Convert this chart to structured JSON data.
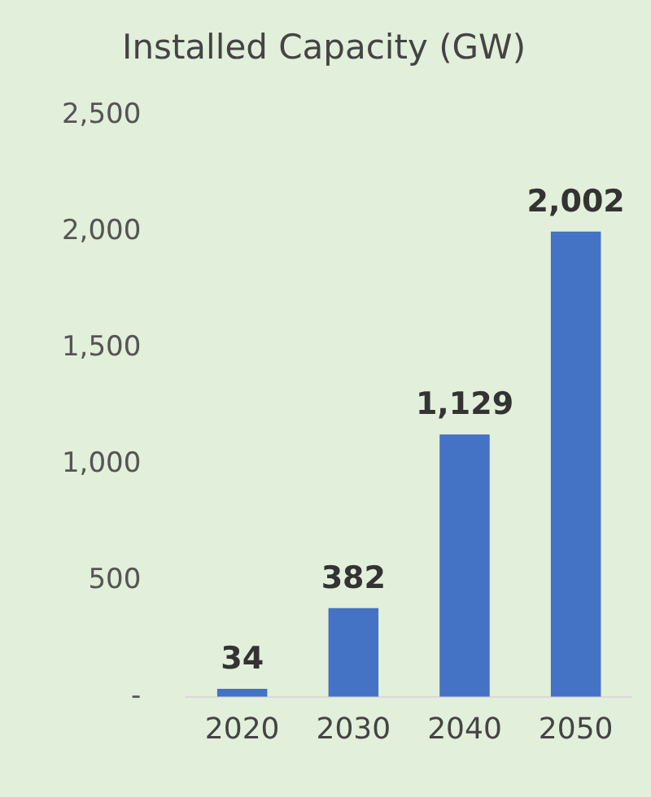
{
  "chart_data": {
    "type": "bar",
    "title": "Installed Capacity (GW)",
    "categories": [
      "2020",
      "2030",
      "2040",
      "2050"
    ],
    "values": [
      34,
      382,
      1129,
      2002
    ],
    "value_labels": [
      "34",
      "382",
      "1,129",
      "2,002"
    ],
    "color": "#4472c4",
    "ylim": [
      0,
      2500
    ],
    "yticks": [
      {
        "value": 0,
        "label": "-"
      },
      {
        "value": 500,
        "label": "500"
      },
      {
        "value": 1000,
        "label": "1,000"
      },
      {
        "value": 1500,
        "label": "1,500"
      },
      {
        "value": 2000,
        "label": "2,000"
      },
      {
        "value": 2500,
        "label": "2,500"
      }
    ],
    "grid": false,
    "legend": false
  }
}
